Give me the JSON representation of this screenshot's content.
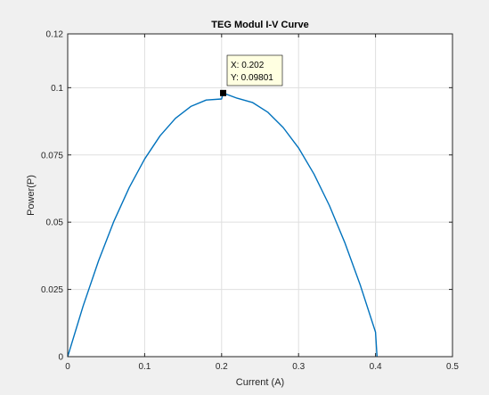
{
  "chart_data": {
    "type": "line",
    "title": "TEG Modul I-V Curve",
    "xlabel": "Current (A)",
    "ylabel": "Power(P)",
    "xlim": [
      0,
      0.5
    ],
    "ylim": [
      0,
      0.12
    ],
    "xticks": [
      0,
      0.1,
      0.2,
      0.3,
      0.4,
      0.5
    ],
    "xtick_labels": [
      "0",
      "0.1",
      "0.2",
      "0.3",
      "0.4",
      "0.5"
    ],
    "yticks": [
      0,
      0.025,
      0.05,
      0.075,
      0.1,
      0.12
    ],
    "ytick_labels": [
      "0",
      "0.025",
      "0.05",
      "0.075",
      "0.1",
      "0.12"
    ],
    "grid": true,
    "series": [
      {
        "color": "#0072bd",
        "x": [
          0,
          0.02,
          0.04,
          0.06,
          0.08,
          0.1,
          0.12,
          0.14,
          0.16,
          0.18,
          0.2,
          0.202,
          0.22,
          0.24,
          0.26,
          0.28,
          0.3,
          0.32,
          0.34,
          0.36,
          0.38,
          0.4,
          0.402
        ],
        "y": [
          0,
          0.0188,
          0.0356,
          0.0503,
          0.0629,
          0.0735,
          0.0821,
          0.0886,
          0.093,
          0.0954,
          0.0958,
          0.09801,
          0.0961,
          0.0945,
          0.0909,
          0.0852,
          0.0776,
          0.0679,
          0.0562,
          0.0425,
          0.0268,
          0.0091,
          0
        ]
      }
    ],
    "datatip": {
      "x_text": "X: 0.202",
      "y_text": "Y: 0.09801",
      "x": 0.202,
      "y": 0.09801
    },
    "colors": {
      "line": "#0072bd",
      "grid": "#dfdfdf",
      "axis": "#262626",
      "background": "#f0f0f0",
      "tip_bg": "#ffffe1"
    }
  }
}
